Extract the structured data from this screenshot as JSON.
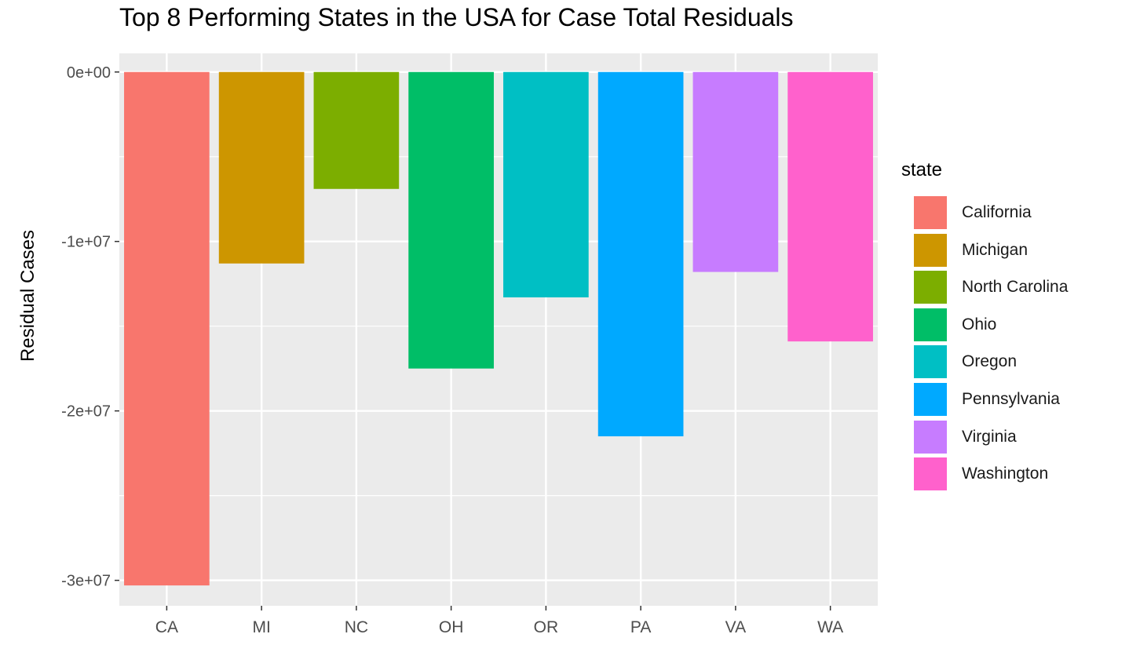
{
  "chart_data": {
    "type": "bar",
    "title": "Top 8 Performing States in the USA for Case Total Residuals",
    "xlabel": "",
    "ylabel": "Residual Cases",
    "categories": [
      "CA",
      "MI",
      "NC",
      "OH",
      "OR",
      "PA",
      "VA",
      "WA"
    ],
    "values": [
      -30300000,
      -11300000,
      -6900000,
      -17500000,
      -13300000,
      -21500000,
      -11800000,
      -15900000
    ],
    "colors": [
      "#F8766D",
      "#CD9600",
      "#7CAE00",
      "#00BE67",
      "#00BFC4",
      "#00A9FF",
      "#C77CFF",
      "#FF61CC"
    ],
    "ylim": [
      -31500000,
      1100000
    ],
    "yticks": [
      0,
      -10000000,
      -20000000,
      -30000000
    ],
    "ytick_labels": [
      "0e+00",
      "-1e+07",
      "-2e+07",
      "-3e+07"
    ],
    "grid": true,
    "legend_position": "right",
    "legend": {
      "title": "state",
      "entries": [
        "California",
        "Michigan",
        "North Carolina",
        "Ohio",
        "Oregon",
        "Pennsylvania",
        "Virginia",
        "Washington"
      ]
    },
    "panel_background": "#EBEBEB",
    "grid_color": "#FFFFFF"
  }
}
